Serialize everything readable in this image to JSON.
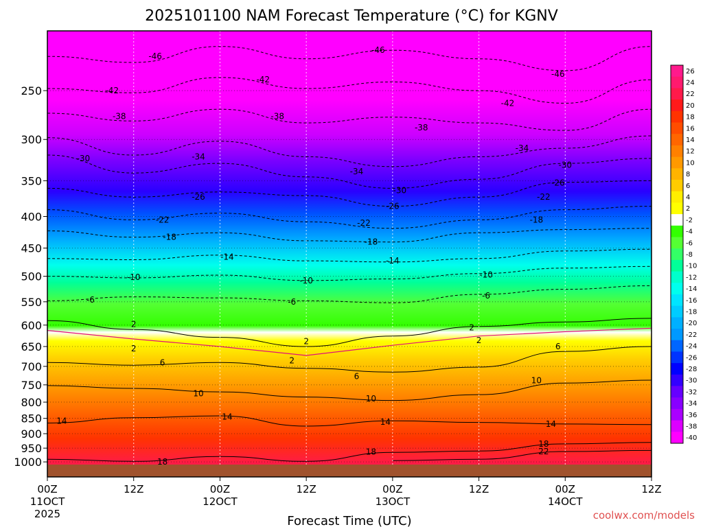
{
  "chart_data": {
    "type": "heatmap",
    "title": "2025101100 NAM Forecast Temperature (°C) for KGNV",
    "xlabel": "Forecast Time (UTC)",
    "ylabel": "",
    "x_ticks": [
      {
        "hour": 0,
        "label": "00Z",
        "sub": "11OCT",
        "sub2": "2025"
      },
      {
        "hour": 12,
        "label": "12Z",
        "sub": "",
        "sub2": ""
      },
      {
        "hour": 24,
        "label": "00Z",
        "sub": "12OCT",
        "sub2": ""
      },
      {
        "hour": 36,
        "label": "12Z",
        "sub": "",
        "sub2": ""
      },
      {
        "hour": 48,
        "label": "00Z",
        "sub": "13OCT",
        "sub2": ""
      },
      {
        "hour": 60,
        "label": "12Z",
        "sub": "",
        "sub2": ""
      },
      {
        "hour": 72,
        "label": "00Z",
        "sub": "14OCT",
        "sub2": ""
      },
      {
        "hour": 84,
        "label": "12Z",
        "sub": "",
        "sub2": ""
      }
    ],
    "xlim": [
      0,
      84
    ],
    "y_ticks": [
      250,
      300,
      350,
      400,
      450,
      500,
      550,
      600,
      650,
      700,
      750,
      800,
      850,
      900,
      950,
      1000
    ],
    "ylim": [
      200,
      1010
    ],
    "y_scale": "log",
    "grid": true,
    "colorbar": {
      "levels": [
        26,
        24,
        22,
        20,
        18,
        16,
        14,
        12,
        10,
        8,
        6,
        4,
        2,
        -2,
        -4,
        -6,
        -8,
        -10,
        -12,
        -14,
        -16,
        -18,
        -20,
        -22,
        -24,
        -26,
        -28,
        -30,
        -32,
        -34,
        -36,
        -38,
        -40
      ],
      "colors": [
        "#ff1a8c",
        "#ff1a6e",
        "#ff1a4a",
        "#ff1a1a",
        "#ff3300",
        "#ff4d00",
        "#ff6600",
        "#ff8000",
        "#ff9900",
        "#ffb300",
        "#ffcc00",
        "#ffee00",
        "#ffff00",
        "#ffffff",
        "#33ff00",
        "#55ff33",
        "#33ff66",
        "#00ff99",
        "#00ffcc",
        "#00ffee",
        "#00e5ff",
        "#00ccff",
        "#00b0ff",
        "#0099ff",
        "#0066ff",
        "#0033ff",
        "#0000ff",
        "#3300ff",
        "#6600ff",
        "#8800ff",
        "#aa00ff",
        "#dd00ff",
        "#ff00ff"
      ]
    },
    "isotherms": [
      {
        "temp": -46,
        "points": [
          [
            0,
            220
          ],
          [
            12,
            225
          ],
          [
            24,
            212
          ],
          [
            36,
            222
          ],
          [
            48,
            215
          ],
          [
            60,
            222
          ],
          [
            72,
            232
          ],
          [
            84,
            212
          ]
        ]
      },
      {
        "temp": -42,
        "points": [
          [
            0,
            248
          ],
          [
            12,
            252
          ],
          [
            24,
            238
          ],
          [
            36,
            248
          ],
          [
            48,
            242
          ],
          [
            60,
            250
          ],
          [
            72,
            262
          ],
          [
            84,
            240
          ]
        ]
      },
      {
        "temp": -38,
        "points": [
          [
            0,
            272
          ],
          [
            12,
            280
          ],
          [
            24,
            268
          ],
          [
            36,
            282
          ],
          [
            48,
            276
          ],
          [
            60,
            282
          ],
          [
            72,
            290
          ],
          [
            84,
            268
          ]
        ]
      },
      {
        "temp": -34,
        "points": [
          [
            0,
            298
          ],
          [
            12,
            318
          ],
          [
            24,
            302
          ],
          [
            36,
            320
          ],
          [
            48,
            332
          ],
          [
            60,
            320
          ],
          [
            72,
            310
          ],
          [
            84,
            296
          ]
        ]
      },
      {
        "temp": -30,
        "points": [
          [
            0,
            318
          ],
          [
            12,
            340
          ],
          [
            24,
            328
          ],
          [
            36,
            345
          ],
          [
            48,
            360
          ],
          [
            60,
            348
          ],
          [
            72,
            328
          ],
          [
            84,
            322
          ]
        ]
      },
      {
        "temp": -26,
        "points": [
          [
            0,
            360
          ],
          [
            12,
            372
          ],
          [
            24,
            365
          ],
          [
            36,
            370
          ],
          [
            48,
            385
          ],
          [
            60,
            372
          ],
          [
            72,
            352
          ],
          [
            84,
            350
          ]
        ]
      },
      {
        "temp": -22,
        "points": [
          [
            0,
            390
          ],
          [
            12,
            405
          ],
          [
            24,
            395
          ],
          [
            36,
            408
          ],
          [
            48,
            418
          ],
          [
            60,
            405
          ],
          [
            72,
            390
          ],
          [
            84,
            385
          ]
        ]
      },
      {
        "temp": -18,
        "points": [
          [
            0,
            422
          ],
          [
            12,
            432
          ],
          [
            24,
            425
          ],
          [
            36,
            438
          ],
          [
            48,
            440
          ],
          [
            60,
            425
          ],
          [
            72,
            420
          ],
          [
            84,
            418
          ]
        ]
      },
      {
        "temp": -14,
        "points": [
          [
            0,
            468
          ],
          [
            12,
            470
          ],
          [
            24,
            462
          ],
          [
            36,
            472
          ],
          [
            48,
            474
          ],
          [
            60,
            468
          ],
          [
            72,
            455
          ],
          [
            84,
            452
          ]
        ]
      },
      {
        "temp": -10,
        "points": [
          [
            0,
            500
          ],
          [
            12,
            503
          ],
          [
            24,
            498
          ],
          [
            36,
            508
          ],
          [
            48,
            505
          ],
          [
            60,
            495
          ],
          [
            72,
            485
          ],
          [
            84,
            482
          ]
        ]
      },
      {
        "temp": -6,
        "points": [
          [
            0,
            548
          ],
          [
            12,
            540
          ],
          [
            24,
            542
          ],
          [
            36,
            548
          ],
          [
            48,
            552
          ],
          [
            60,
            535
          ],
          [
            72,
            525
          ],
          [
            84,
            518
          ]
        ]
      },
      {
        "temp": 2,
        "points": [
          [
            0,
            590
          ],
          [
            12,
            610
          ],
          [
            24,
            628
          ],
          [
            36,
            650
          ],
          [
            48,
            625
          ],
          [
            60,
            603
          ],
          [
            72,
            593
          ],
          [
            84,
            585
          ]
        ]
      },
      {
        "temp": 6,
        "points": [
          [
            0,
            690
          ],
          [
            12,
            697
          ],
          [
            24,
            690
          ],
          [
            36,
            705
          ],
          [
            48,
            715
          ],
          [
            60,
            702
          ],
          [
            72,
            662
          ],
          [
            84,
            650
          ]
        ]
      },
      {
        "temp": 10,
        "points": [
          [
            0,
            752
          ],
          [
            12,
            760
          ],
          [
            24,
            770
          ],
          [
            36,
            785
          ],
          [
            48,
            795
          ],
          [
            60,
            778
          ],
          [
            72,
            745
          ],
          [
            84,
            737
          ]
        ]
      },
      {
        "temp": 14,
        "points": [
          [
            0,
            865
          ],
          [
            12,
            848
          ],
          [
            24,
            842
          ],
          [
            36,
            875
          ],
          [
            48,
            858
          ],
          [
            60,
            863
          ],
          [
            72,
            868
          ],
          [
            84,
            870
          ]
        ]
      },
      {
        "temp": 18,
        "points": [
          [
            0,
            990
          ],
          [
            12,
            998
          ],
          [
            24,
            980
          ],
          [
            36,
            998
          ],
          [
            48,
            965
          ],
          [
            60,
            960
          ],
          [
            72,
            935
          ],
          [
            84,
            930
          ]
        ]
      },
      {
        "temp": 22,
        "points": [
          [
            48,
            995
          ],
          [
            60,
            990
          ],
          [
            72,
            962
          ],
          [
            84,
            958
          ]
        ]
      }
    ],
    "contour_labels": [
      {
        "text": "-46",
        "x": 15,
        "p": 220
      },
      {
        "text": "-46",
        "x": 46,
        "p": 215
      },
      {
        "text": "-46",
        "x": 71,
        "p": 235
      },
      {
        "text": "-42",
        "x": 9,
        "p": 250
      },
      {
        "text": "-42",
        "x": 30,
        "p": 240
      },
      {
        "text": "-42",
        "x": 64,
        "p": 262
      },
      {
        "text": "-38",
        "x": 10,
        "p": 275
      },
      {
        "text": "-38",
        "x": 32,
        "p": 275
      },
      {
        "text": "-38",
        "x": 52,
        "p": 287
      },
      {
        "text": "-34",
        "x": 21,
        "p": 320
      },
      {
        "text": "-34",
        "x": 43,
        "p": 338
      },
      {
        "text": "-34",
        "x": 66,
        "p": 310
      },
      {
        "text": "-30",
        "x": 5,
        "p": 322
      },
      {
        "text": "-30",
        "x": 49,
        "p": 363
      },
      {
        "text": "-30",
        "x": 72,
        "p": 330
      },
      {
        "text": "-26",
        "x": 21,
        "p": 372
      },
      {
        "text": "-26",
        "x": 48,
        "p": 385
      },
      {
        "text": "-26",
        "x": 71,
        "p": 353
      },
      {
        "text": "-22",
        "x": 16,
        "p": 405
      },
      {
        "text": "-22",
        "x": 44,
        "p": 410
      },
      {
        "text": "-22",
        "x": 69,
        "p": 372
      },
      {
        "text": "-18",
        "x": 17,
        "p": 432
      },
      {
        "text": "-18",
        "x": 45,
        "p": 440
      },
      {
        "text": "-18",
        "x": 68,
        "p": 405
      },
      {
        "text": "-14",
        "x": 25,
        "p": 465
      },
      {
        "text": "-14",
        "x": 48,
        "p": 472
      },
      {
        "text": "-10",
        "x": 12,
        "p": 502
      },
      {
        "text": "-10",
        "x": 36,
        "p": 508
      },
      {
        "text": "-10",
        "x": 61,
        "p": 497
      },
      {
        "text": "-6",
        "x": 6,
        "p": 546
      },
      {
        "text": "-6",
        "x": 34,
        "p": 550
      },
      {
        "text": "-6",
        "x": 61,
        "p": 538
      },
      {
        "text": "2",
        "x": 12,
        "p": 598
      },
      {
        "text": "2",
        "x": 36,
        "p": 638
      },
      {
        "text": "2",
        "x": 59,
        "p": 606
      },
      {
        "text": "2",
        "x": 12,
        "p": 655
      },
      {
        "text": "2",
        "x": 34,
        "p": 685
      },
      {
        "text": "2",
        "x": 60,
        "p": 635
      },
      {
        "text": "6",
        "x": 16,
        "p": 690
      },
      {
        "text": "6",
        "x": 43,
        "p": 727
      },
      {
        "text": "6",
        "x": 71,
        "p": 650
      },
      {
        "text": "10",
        "x": 21,
        "p": 775
      },
      {
        "text": "10",
        "x": 45,
        "p": 790
      },
      {
        "text": "10",
        "x": 68,
        "p": 738
      },
      {
        "text": "14",
        "x": 2,
        "p": 858
      },
      {
        "text": "14",
        "x": 25,
        "p": 845
      },
      {
        "text": "14",
        "x": 47,
        "p": 862
      },
      {
        "text": "14",
        "x": 70,
        "p": 868
      },
      {
        "text": "18",
        "x": 16,
        "p": 1000
      },
      {
        "text": "18",
        "x": 45,
        "p": 963
      },
      {
        "text": "18",
        "x": 69,
        "p": 935
      },
      {
        "text": "22",
        "x": 69,
        "p": 962
      }
    ]
  },
  "credit": "coolwx.com/models"
}
